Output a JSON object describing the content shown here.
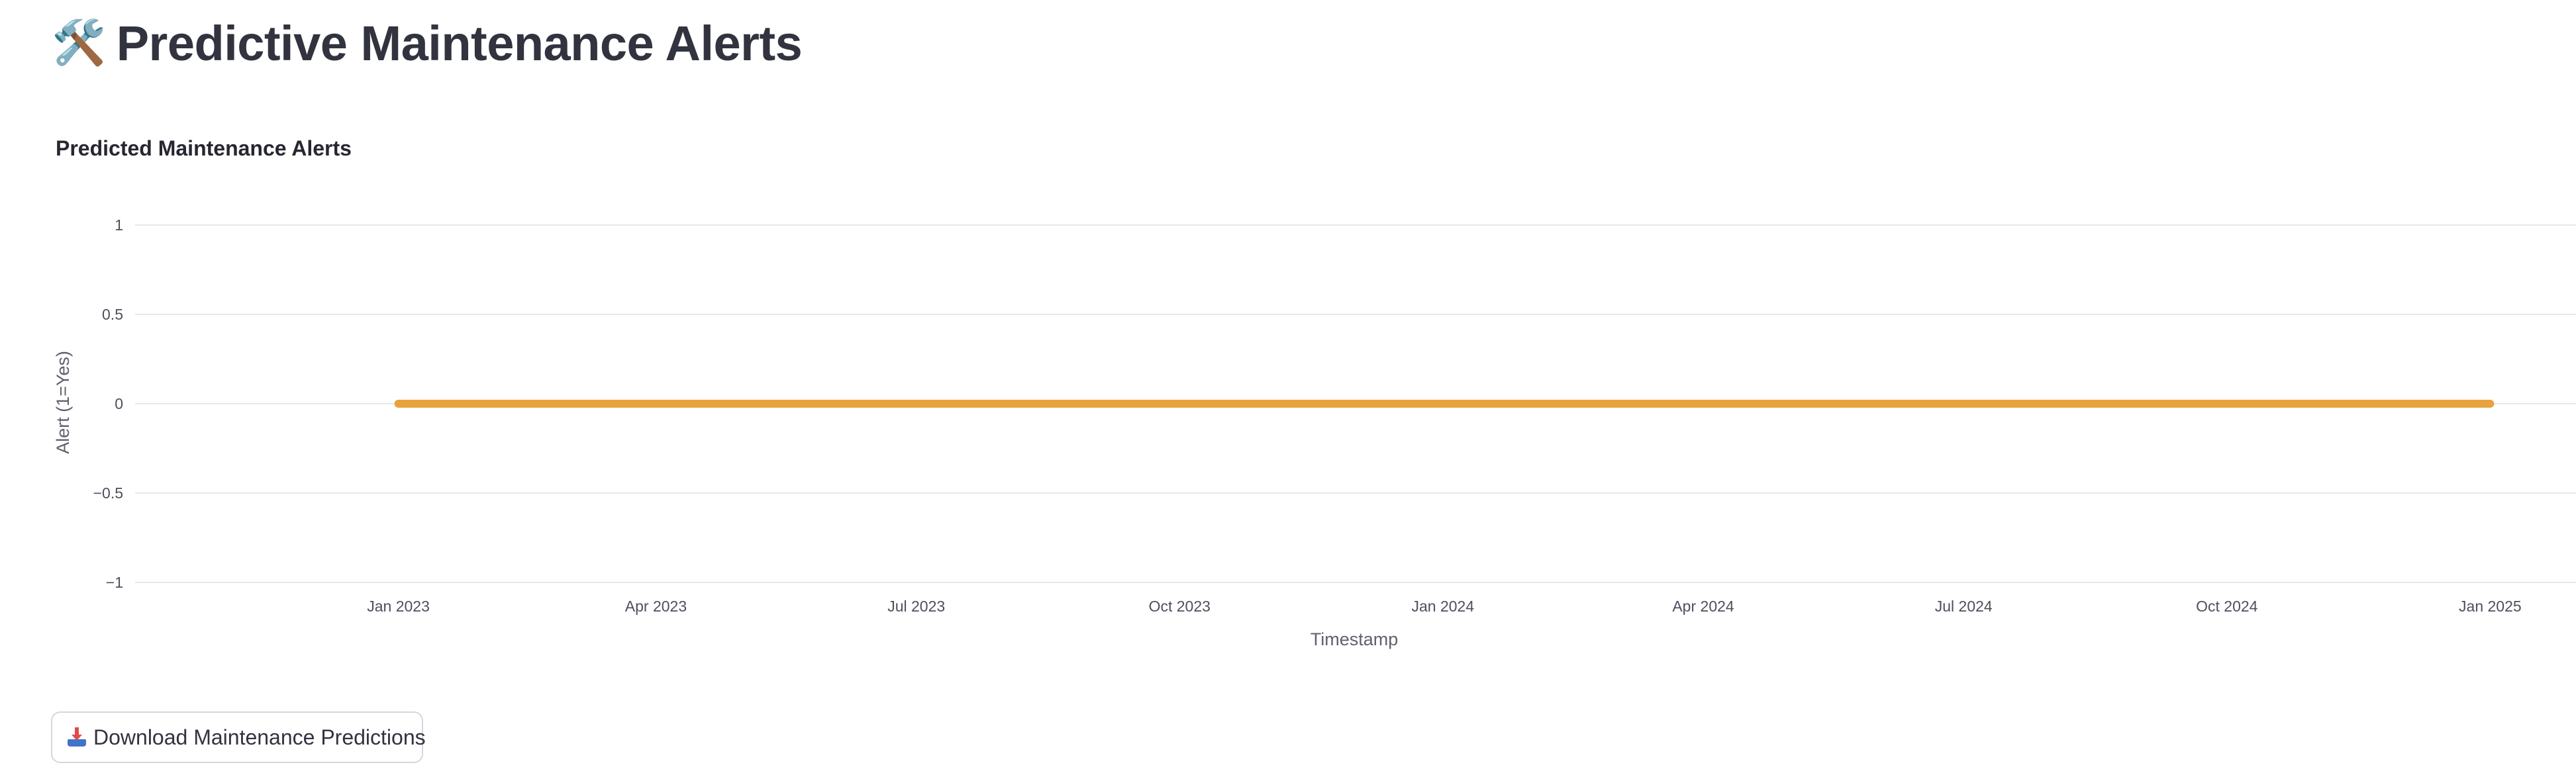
{
  "page": {
    "title": "Predictive Maintenance Alerts",
    "title_icon": "🛠️"
  },
  "chart_data": {
    "type": "line",
    "title": "Predicted Maintenance Alerts",
    "xlabel": "Timestamp",
    "ylabel": "Alert (1=Yes)",
    "x_range": [
      "2022-10-01",
      "2025-01-31"
    ],
    "ylim": [
      -1,
      1
    ],
    "y_ticks": [
      1,
      0.5,
      0,
      -0.5,
      -1
    ],
    "y_tick_labels": [
      "1",
      "0.5",
      "0",
      "−0.5",
      "−1"
    ],
    "x_ticks": [
      "2023-01-01",
      "2023-04-01",
      "2023-07-01",
      "2023-10-01",
      "2024-01-01",
      "2024-04-01",
      "2024-07-01",
      "2024-10-01",
      "2025-01-01"
    ],
    "x_tick_labels": [
      "Jan 2023",
      "Apr 2023",
      "Jul 2023",
      "Oct 2023",
      "Jan 2024",
      "Apr 2024",
      "Jul 2024",
      "Oct 2024",
      "Jan 2025"
    ],
    "grid": true,
    "series": [
      {
        "color": "#e8a33d",
        "x": [
          "2023-01-01",
          "2025-01-01"
        ],
        "y": [
          0,
          0
        ]
      }
    ]
  },
  "download": {
    "icon": "inbox-tray-icon",
    "label": "Download Maintenance Predictions"
  }
}
